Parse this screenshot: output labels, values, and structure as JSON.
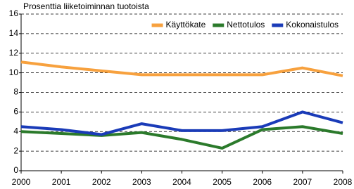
{
  "chart_data": {
    "type": "line",
    "title": "Prosenttia liiketoiminnan tuotoista",
    "x": [
      2000,
      2001,
      2002,
      2003,
      2004,
      2005,
      2006,
      2007,
      2008
    ],
    "xlim": [
      2000,
      2008
    ],
    "xticks": [
      2000,
      2001,
      2002,
      2003,
      2004,
      2005,
      2006,
      2007,
      2008
    ],
    "ylim": [
      0,
      16
    ],
    "yticks": [
      0,
      2,
      4,
      6,
      8,
      10,
      12,
      14,
      16
    ],
    "grid": true,
    "legend": "upper right",
    "series": [
      {
        "name": "Käyttökate",
        "color": "#F7A13E",
        "values": [
          11.1,
          10.6,
          10.2,
          9.8,
          9.8,
          9.8,
          9.8,
          10.5,
          9.7
        ]
      },
      {
        "name": "Nettotulos",
        "color": "#2B7A2B",
        "values": [
          4.0,
          3.8,
          3.6,
          3.9,
          3.2,
          2.3,
          4.2,
          4.5,
          3.8
        ]
      },
      {
        "name": "Kokonaistulos",
        "color": "#1A3BB8",
        "values": [
          4.5,
          4.2,
          3.7,
          4.8,
          4.1,
          4.1,
          4.5,
          6.0,
          4.9
        ]
      }
    ]
  }
}
